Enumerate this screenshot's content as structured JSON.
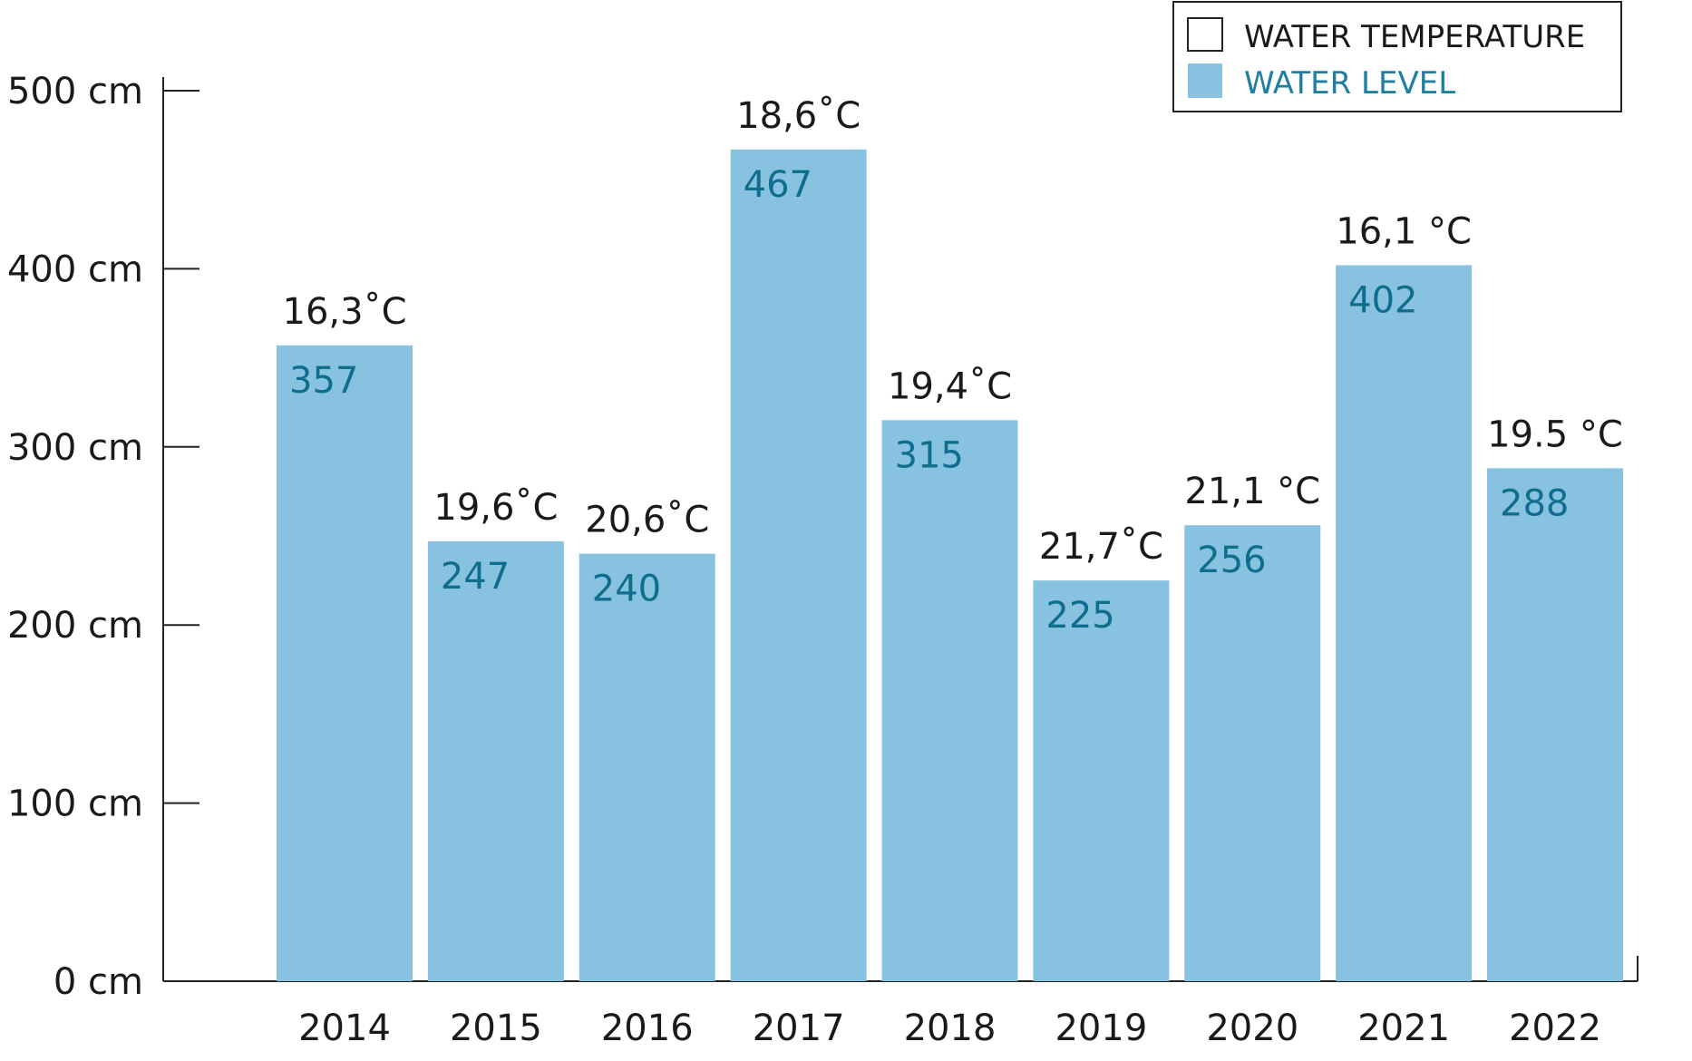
{
  "colors": {
    "bar": "#87c3e0",
    "value_text": "#0f6d8e",
    "axis": "#222222",
    "text": "#1a1a1a",
    "legend_text_level": "#1f7fa0"
  },
  "legend": {
    "temperature": "WATER TEMPERATURE",
    "level": "WATER LEVEL",
    "placement": "top-right"
  },
  "chart_data": {
    "type": "bar",
    "title": "",
    "xlabel": "",
    "ylabel": "",
    "ylim": [
      0,
      500
    ],
    "yticks": [
      0,
      100,
      200,
      300,
      400,
      500
    ],
    "ytick_labels": [
      "0 cm",
      "100 cm",
      "200 cm",
      "300 cm",
      "400 cm",
      "500 cm"
    ],
    "categories": [
      "2014",
      "2015",
      "2016",
      "2017",
      "2018",
      "2019",
      "2020",
      "2021",
      "2022"
    ],
    "series": [
      {
        "name": "WATER LEVEL",
        "values": [
          357,
          247,
          240,
          467,
          315,
          225,
          256,
          402,
          288
        ]
      }
    ],
    "temperature_labels": [
      "16,3˚C",
      "19,6˚C",
      "20,6˚C",
      "18,6˚C",
      "19,4˚C",
      "21,7˚C",
      "21,1 °C",
      "16,1 °C",
      "19.5 °C"
    ]
  }
}
